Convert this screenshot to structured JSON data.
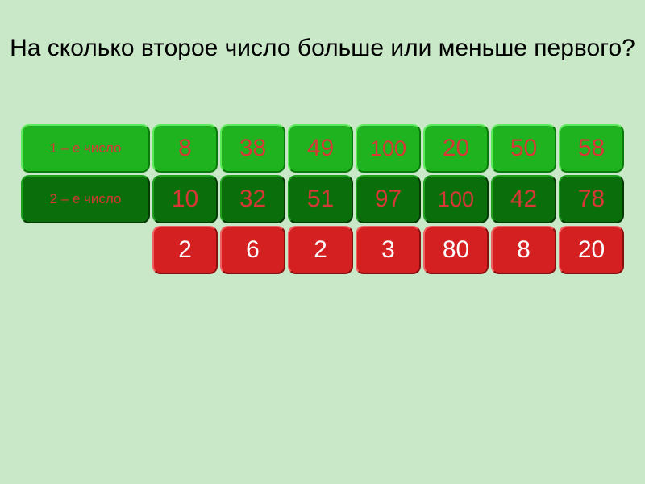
{
  "title": "На сколько второе число больше или меньше первого?",
  "row1": {
    "label": "1 – е число",
    "values": [
      "8",
      "38",
      "49",
      "100",
      "20",
      "50",
      "58"
    ]
  },
  "row2": {
    "label": "2 – е число",
    "values": [
      "10",
      "32",
      "51",
      "97",
      "100",
      "42",
      "78"
    ]
  },
  "row3": {
    "values": [
      "2",
      "6",
      "2",
      "3",
      "80",
      "8",
      "20"
    ]
  },
  "colors": {
    "background": "#c8e8c8",
    "row1_bg": "#1fb41f",
    "row2_bg": "#0a6e0a",
    "row3_bg": "#d42020",
    "text_red": "#d63838",
    "text_white": "#ffffff"
  }
}
